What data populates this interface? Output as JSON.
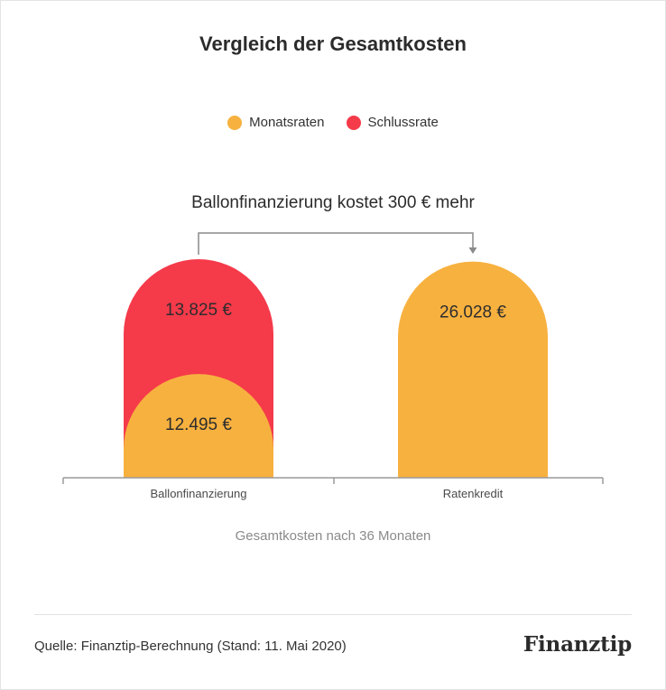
{
  "chart_data": {
    "type": "bar",
    "title": "Vergleich der Gesamtkosten",
    "categories": [
      "Ballonfinanzierung",
      "Ratenkredit"
    ],
    "series": [
      {
        "name": "Monatsraten",
        "color": "#F7B13F",
        "values": [
          12495,
          26028
        ],
        "labels": [
          "12.495 €",
          "26.028 €"
        ]
      },
      {
        "name": "Schlussrate",
        "color": "#F53A4A",
        "values": [
          13825,
          0
        ],
        "labels": [
          "13.825 €",
          ""
        ]
      }
    ],
    "stacked": true,
    "annotation": "Ballonfinanzierung kostet 300 € mehr",
    "xlabel": "Gesamtkosten nach 36 Monaten",
    "ylabel": "",
    "grid": false,
    "legend_position": "top-center"
  },
  "footer": {
    "source": "Quelle: Finanztip-Berechnung (Stand: 11. Mai 2020)",
    "logo_text": "Finanztip"
  },
  "colors": {
    "axis": "#9a9a9a",
    "text": "#2d2d2d",
    "muted": "#8a8a8a"
  }
}
